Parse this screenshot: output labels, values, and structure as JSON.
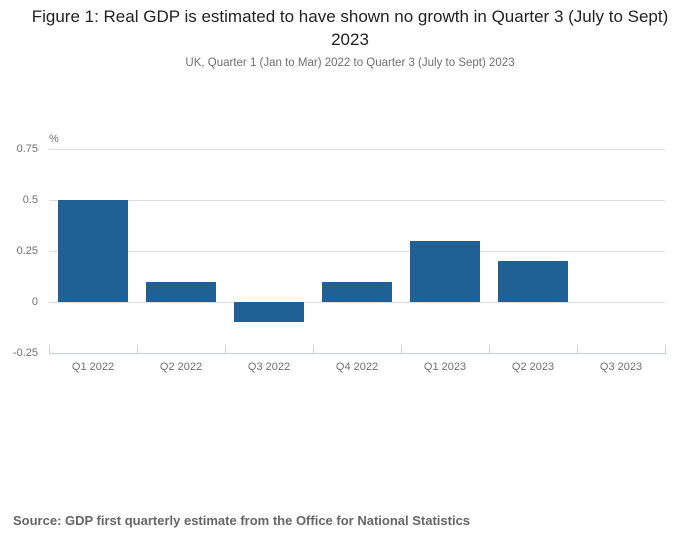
{
  "chart_data": {
    "type": "bar",
    "title": "Figure 1: Real GDP is estimated to have shown no growth in Quarter 3 (July to Sept) 2023",
    "subtitle": "UK, Quarter 1 (Jan to Mar) 2022 to Quarter 3 (July to Sept) 2023",
    "categories": [
      "Q1 2022",
      "Q2 2022",
      "Q3 2022",
      "Q4 2022",
      "Q1 2023",
      "Q2 2023",
      "Q3 2023"
    ],
    "values": [
      0.5,
      0.1,
      -0.1,
      0.1,
      0.3,
      0.2,
      0.0
    ],
    "xlabel": "",
    "ylabel": "%",
    "ylim": [
      -0.25,
      0.75
    ],
    "yticks": [
      0.75,
      0.5,
      0.25,
      0,
      -0.25
    ],
    "ytick_labels": [
      "0.75",
      "0.5",
      "0.25",
      "0",
      "-0.25"
    ],
    "grid": true,
    "legend": false,
    "bar_color": "#206095"
  },
  "source_note": "Source: GDP first quarterly estimate from the Office for National Statistics"
}
